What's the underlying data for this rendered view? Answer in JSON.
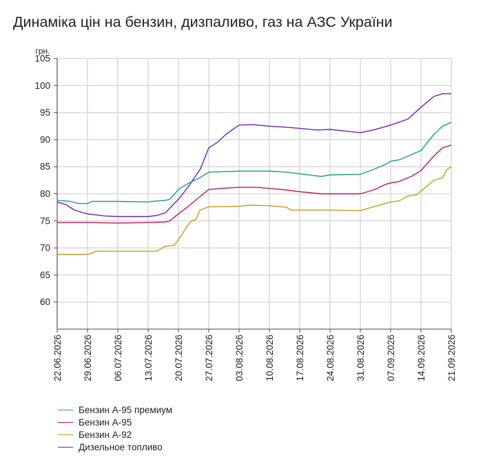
{
  "title": "Динаміка цін на бензин, дизпаливо, газ на АЗС України",
  "chart_data": {
    "type": "line",
    "title": "Динаміка цін на бензин, дизпаливо, газ на АЗС України",
    "ylabel": "грн.",
    "xlabel": "",
    "ylim": [
      55,
      105
    ],
    "yticks": [
      "60",
      "65",
      "70",
      "75",
      "80",
      "85",
      "90",
      "95",
      "100",
      "105"
    ],
    "x_tick_labels": [
      "22.06.2026",
      "29.06.2026",
      "06.07.2026",
      "13.07.2026",
      "20.07.2026",
      "27.07.2026",
      "03.08.2026",
      "10.08.2026",
      "17.08.2026",
      "24.08.2026",
      "31.08.2026",
      "07.09.2026",
      "14.09.2026",
      "21.09.2026"
    ],
    "grid": true,
    "legend_position": "bottom-left",
    "series": [
      {
        "name": "Бензин А-95 премиум",
        "color": "#1a9e7e",
        "points": [
          [
            "22.06.2026",
            78.8
          ],
          [
            "25.06.2026",
            78.6
          ],
          [
            "27.06.2026",
            78.2
          ],
          [
            "29.06.2026",
            78.2
          ],
          [
            "30.06.2026",
            78.6
          ],
          [
            "06.07.2026",
            78.6
          ],
          [
            "13.07.2026",
            78.5
          ],
          [
            "14.07.2026",
            78.6
          ],
          [
            "17.07.2026",
            78.8
          ],
          [
            "18.07.2026",
            79.0
          ],
          [
            "20.07.2026",
            80.8
          ],
          [
            "22.07.2026",
            81.8
          ],
          [
            "25.07.2026",
            83.0
          ],
          [
            "27.07.2026",
            84.0
          ],
          [
            "31.07.2026",
            84.1
          ],
          [
            "03.08.2026",
            84.2
          ],
          [
            "10.08.2026",
            84.2
          ],
          [
            "14.08.2026",
            84.0
          ],
          [
            "17.08.2026",
            83.7
          ],
          [
            "22.08.2026",
            83.2
          ],
          [
            "24.08.2026",
            83.5
          ],
          [
            "31.08.2026",
            83.6
          ],
          [
            "03.09.2026",
            84.5
          ],
          [
            "06.09.2026",
            85.5
          ],
          [
            "07.09.2026",
            86.0
          ],
          [
            "09.09.2026",
            86.3
          ],
          [
            "12.09.2026",
            87.3
          ],
          [
            "14.09.2026",
            88.0
          ],
          [
            "17.09.2026",
            91.0
          ],
          [
            "19.09.2026",
            92.5
          ],
          [
            "21.09.2026",
            93.2
          ]
        ]
      },
      {
        "name": "Бензин А-95",
        "color": "#c0135b",
        "points": [
          [
            "22.06.2026",
            74.7
          ],
          [
            "29.06.2026",
            74.7
          ],
          [
            "06.07.2026",
            74.6
          ],
          [
            "13.07.2026",
            74.7
          ],
          [
            "17.07.2026",
            74.8
          ],
          [
            "18.07.2026",
            75.0
          ],
          [
            "20.07.2026",
            76.3
          ],
          [
            "22.07.2026",
            77.5
          ],
          [
            "25.07.2026",
            79.5
          ],
          [
            "27.07.2026",
            80.8
          ],
          [
            "30.07.2026",
            81.0
          ],
          [
            "03.08.2026",
            81.2
          ],
          [
            "07.08.2026",
            81.2
          ],
          [
            "10.08.2026",
            81.0
          ],
          [
            "14.08.2026",
            80.7
          ],
          [
            "17.08.2026",
            80.4
          ],
          [
            "22.08.2026",
            80.0
          ],
          [
            "24.08.2026",
            80.0
          ],
          [
            "31.08.2026",
            80.0
          ],
          [
            "03.09.2026",
            80.7
          ],
          [
            "06.09.2026",
            81.8
          ],
          [
            "07.09.2026",
            82.0
          ],
          [
            "09.09.2026",
            82.3
          ],
          [
            "12.09.2026",
            83.3
          ],
          [
            "14.09.2026",
            84.3
          ],
          [
            "17.09.2026",
            87.0
          ],
          [
            "19.09.2026",
            88.5
          ],
          [
            "21.09.2026",
            89.0
          ]
        ]
      },
      {
        "name": "Бензин А-92",
        "color": "#c49a19",
        "points": [
          [
            "22.06.2026",
            68.8
          ],
          [
            "29.06.2026",
            68.8
          ],
          [
            "30.06.2026",
            69.0
          ],
          [
            "01.07.2026",
            69.4
          ],
          [
            "06.07.2026",
            69.4
          ],
          [
            "13.07.2026",
            69.4
          ],
          [
            "15.07.2026",
            69.4
          ],
          [
            "17.07.2026",
            70.3
          ],
          [
            "19.07.2026",
            70.5
          ],
          [
            "20.07.2026",
            71.5
          ],
          [
            "22.07.2026",
            74.0
          ],
          [
            "23.07.2026",
            75.0
          ],
          [
            "24.07.2026",
            75.2
          ],
          [
            "25.07.2026",
            77.0
          ],
          [
            "27.07.2026",
            77.6
          ],
          [
            "03.08.2026",
            77.7
          ],
          [
            "06.08.2026",
            77.9
          ],
          [
            "10.08.2026",
            77.8
          ],
          [
            "14.08.2026",
            77.5
          ],
          [
            "15.08.2026",
            77.0
          ],
          [
            "17.08.2026",
            77.0
          ],
          [
            "24.08.2026",
            77.0
          ],
          [
            "31.08.2026",
            76.9
          ],
          [
            "03.09.2026",
            77.6
          ],
          [
            "07.09.2026",
            78.5
          ],
          [
            "09.09.2026",
            78.7
          ],
          [
            "11.09.2026",
            79.6
          ],
          [
            "13.09.2026",
            79.8
          ],
          [
            "14.09.2026",
            80.5
          ],
          [
            "17.09.2026",
            82.5
          ],
          [
            "19.09.2026",
            83.0
          ],
          [
            "20.09.2026",
            84.5
          ],
          [
            "21.09.2026",
            85.0
          ]
        ]
      },
      {
        "name": "Дизельное топливо",
        "color": "#6a1fc0",
        "points": [
          [
            "22.06.2026",
            78.5
          ],
          [
            "24.06.2026",
            78.0
          ],
          [
            "26.06.2026",
            77.0
          ],
          [
            "28.06.2026",
            76.5
          ],
          [
            "29.06.2026",
            76.3
          ],
          [
            "03.07.2026",
            75.9
          ],
          [
            "06.07.2026",
            75.8
          ],
          [
            "13.07.2026",
            75.8
          ],
          [
            "15.07.2026",
            76.0
          ],
          [
            "17.07.2026",
            76.5
          ],
          [
            "20.07.2026",
            79.0
          ],
          [
            "22.07.2026",
            81.0
          ],
          [
            "25.07.2026",
            84.5
          ],
          [
            "27.07.2026",
            88.5
          ],
          [
            "29.07.2026",
            89.5
          ],
          [
            "31.07.2026",
            91.0
          ],
          [
            "03.08.2026",
            92.7
          ],
          [
            "06.08.2026",
            92.8
          ],
          [
            "10.08.2026",
            92.5
          ],
          [
            "14.08.2026",
            92.3
          ],
          [
            "17.08.2026",
            92.1
          ],
          [
            "21.08.2026",
            91.8
          ],
          [
            "24.08.2026",
            91.9
          ],
          [
            "31.08.2026",
            91.3
          ],
          [
            "03.09.2026",
            91.8
          ],
          [
            "07.09.2026",
            92.7
          ],
          [
            "11.09.2026",
            93.8
          ],
          [
            "14.09.2026",
            96.0
          ],
          [
            "17.09.2026",
            98.0
          ],
          [
            "19.09.2026",
            98.5
          ],
          [
            "21.09.2026",
            98.5
          ]
        ]
      }
    ]
  },
  "legend": {
    "items": [
      {
        "label": "Бензин А-95 премиум",
        "color": "#1a9e7e"
      },
      {
        "label": "Бензин А-95",
        "color": "#c0135b"
      },
      {
        "label": "Бензин А-92",
        "color": "#c49a19"
      },
      {
        "label": "Дизельное топливо",
        "color": "#6a1fc0"
      }
    ]
  }
}
